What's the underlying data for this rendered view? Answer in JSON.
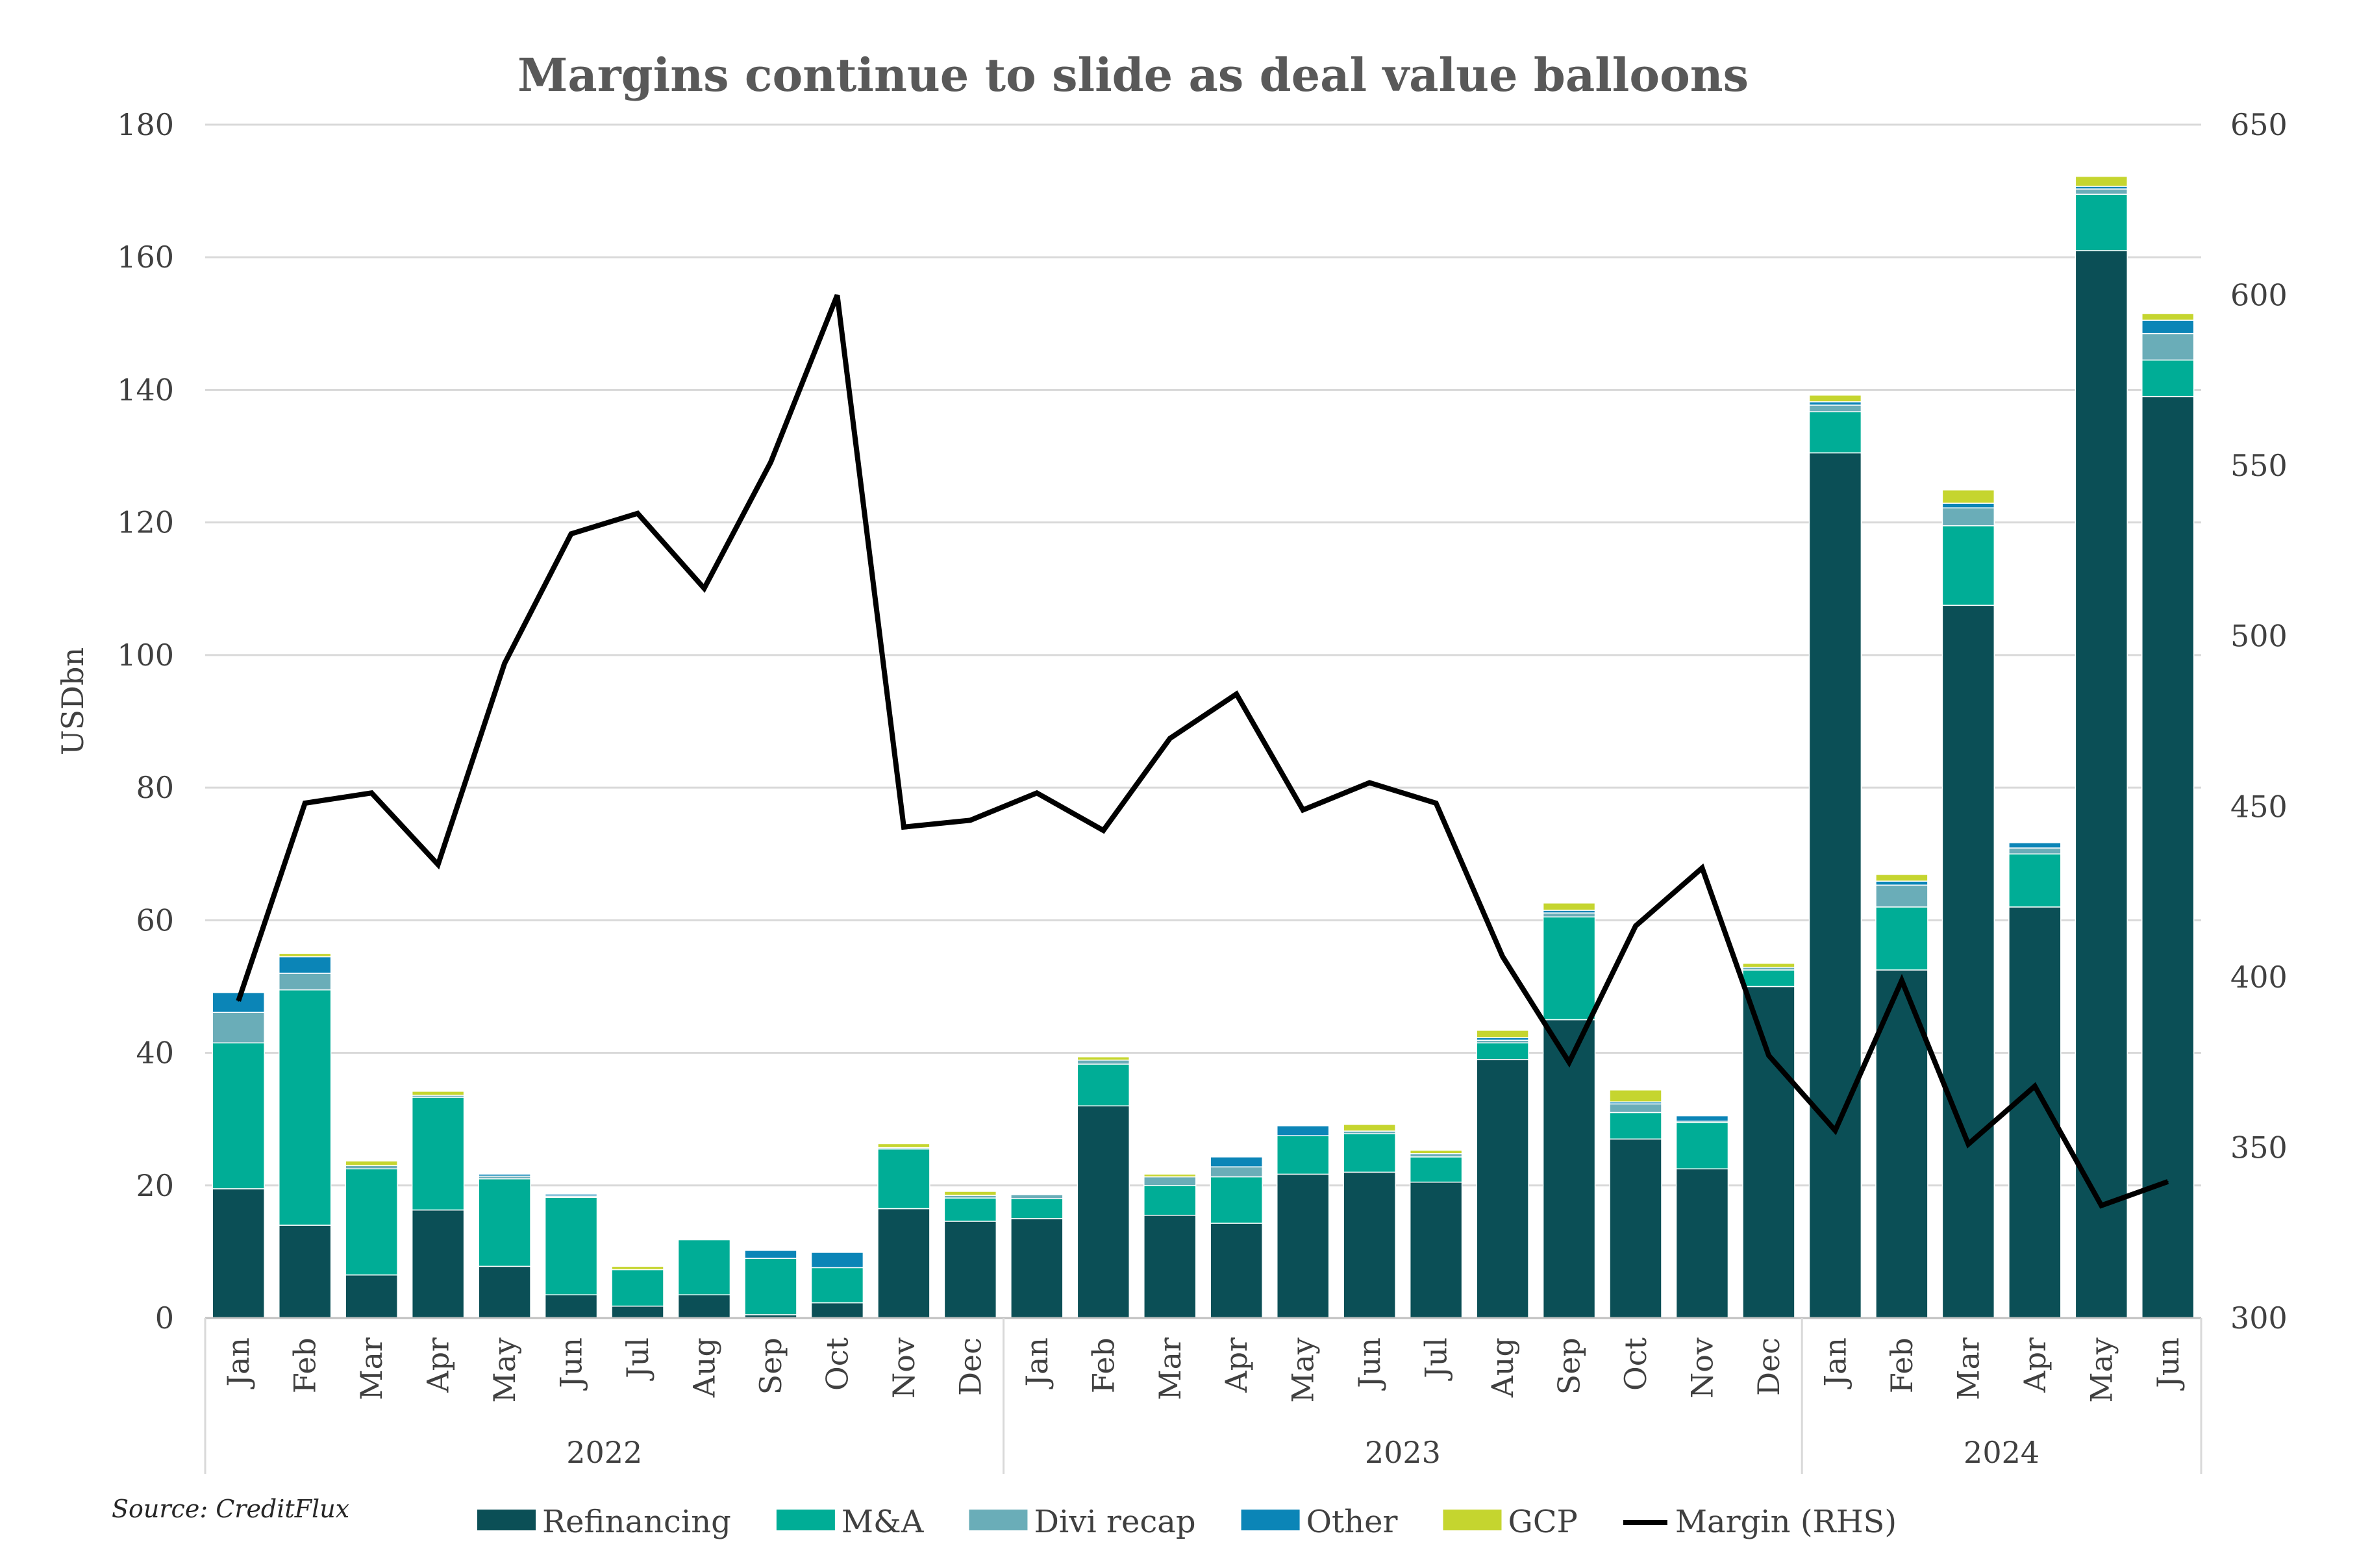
{
  "chart_data": {
    "type": "bar",
    "stacked": true,
    "title": "Margins continue to slide as deal value balloons",
    "ylabel": "USDbn",
    "ylim": [
      0,
      180
    ],
    "y_ticks": [
      0,
      20,
      40,
      60,
      80,
      100,
      120,
      140,
      160,
      180
    ],
    "y2lim": [
      300,
      650
    ],
    "y2_ticks": [
      300,
      350,
      400,
      450,
      500,
      550,
      600,
      650
    ],
    "grid": true,
    "legend_position": "bottom",
    "source": "Source: CreditFlux",
    "year_groups": [
      {
        "label": "2022",
        "count": 12
      },
      {
        "label": "2023",
        "count": 12
      },
      {
        "label": "2024",
        "count": 6
      }
    ],
    "categories": [
      "Jan",
      "Feb",
      "Mar",
      "Apr",
      "May",
      "Jun",
      "Jul",
      "Aug",
      "Sep",
      "Oct",
      "Nov",
      "Dec",
      "Jan",
      "Feb",
      "Mar",
      "Apr",
      "May",
      "Jun",
      "Jul",
      "Aug",
      "Sep",
      "Oct",
      "Nov",
      "Dec",
      "Jan",
      "Feb",
      "Mar",
      "Apr",
      "May",
      "Jun"
    ],
    "series": [
      {
        "name": "Refinancing",
        "color": "#0b4f56",
        "values": [
          19.5,
          14,
          6.5,
          16.3,
          7.8,
          3.5,
          1.8,
          3.5,
          0.5,
          2.3,
          16.5,
          14.6,
          15,
          32,
          15.5,
          14.3,
          21.7,
          22,
          20.5,
          39,
          45,
          27,
          22.5,
          50,
          130.5,
          52.5,
          107.5,
          62,
          161,
          139
        ]
      },
      {
        "name": "M&A",
        "color": "#00ad96",
        "values": [
          22,
          35.5,
          16,
          17,
          13.2,
          14.7,
          5.5,
          8.3,
          8.5,
          5.3,
          9,
          3.5,
          3,
          6.3,
          4.5,
          7,
          5.8,
          5.8,
          3.8,
          2.5,
          15.5,
          4,
          7,
          2.5,
          6.2,
          9.5,
          12,
          8,
          8.5,
          5.5
        ]
      },
      {
        "name": "Divi recap",
        "color": "#6aadb8",
        "values": [
          4.6,
          2.5,
          0.5,
          0.3,
          0.4,
          0.2,
          0,
          0,
          0,
          0,
          0.2,
          0.4,
          0.6,
          0.6,
          1.3,
          1.5,
          0,
          0.4,
          0.5,
          0.4,
          0.6,
          1.3,
          0.2,
          0.4,
          1,
          3.3,
          2.7,
          0.9,
          0.8,
          4
        ]
      },
      {
        "name": "Other",
        "color": "#0b85b7",
        "values": [
          3,
          2.5,
          0,
          0,
          0.3,
          0.3,
          0,
          0,
          1.2,
          2.3,
          0,
          0,
          0,
          0,
          0,
          1.5,
          1.5,
          0,
          0,
          0.4,
          0.4,
          0.3,
          0.8,
          0,
          0.5,
          0.6,
          0.7,
          0.8,
          0.4,
          2
        ]
      },
      {
        "name": "GCP",
        "color": "#c5d52f",
        "values": [
          0,
          0.5,
          0.7,
          0.6,
          0,
          0,
          0.5,
          0,
          0,
          0,
          0.6,
          0.6,
          0,
          0.5,
          0.4,
          0,
          0,
          1,
          0.5,
          1.1,
          1.1,
          1.8,
          0,
          0.6,
          1,
          1,
          2,
          0,
          1.5,
          1
        ]
      },
      {
        "name": "Margin (RHS)",
        "color": "#000000",
        "axis": "right",
        "type": "line",
        "values": [
          393,
          451,
          454,
          433,
          492,
          530,
          536,
          514,
          551,
          600,
          444,
          446,
          454,
          443,
          470,
          483,
          449,
          457,
          451,
          406,
          375,
          415,
          432,
          377,
          355,
          399,
          351,
          368,
          333,
          340
        ]
      }
    ]
  }
}
